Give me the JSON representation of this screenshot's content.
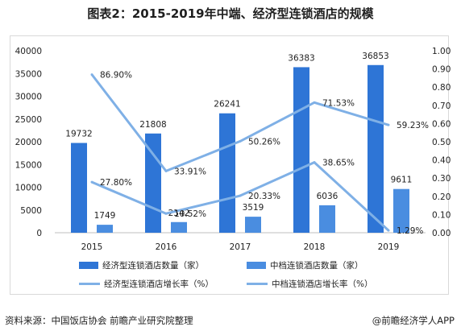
{
  "title": "图表2：2015-2019年中端、经济型连锁酒店的规模",
  "footer": {
    "source": "资料来源：中国饭店协会 前瞻产业研究院整理",
    "brand": "@前瞻经济学人APP"
  },
  "chart_data": {
    "type": "bar",
    "categories": [
      "2015",
      "2016",
      "2017",
      "2018",
      "2019"
    ],
    "y_left": {
      "min": 0,
      "max": 40000,
      "ticks": [
        0,
        5000,
        10000,
        15000,
        20000,
        25000,
        30000,
        35000,
        40000
      ]
    },
    "y_right": {
      "min": 0,
      "max": 1.0,
      "ticks": [
        "0.00",
        "0.10",
        "0.20",
        "0.30",
        "0.40",
        "0.50",
        "0.60",
        "0.70",
        "0.80",
        "0.90",
        "1.00"
      ]
    },
    "series": [
      {
        "name": "经济型连锁酒店数量（家）",
        "kind": "bar",
        "axis": "left",
        "color": "#2e75d6",
        "values": [
          19732,
          21808,
          26241,
          36383,
          36853
        ],
        "labels": [
          "19732",
          "21808",
          "26241",
          "36383",
          "36853"
        ]
      },
      {
        "name": "中档连锁酒店数量（家）",
        "kind": "bar",
        "axis": "left",
        "color": "#4a8de0",
        "values": [
          1749,
          2342,
          3519,
          6036,
          9611
        ],
        "labels": [
          "1749",
          "2342",
          "3519",
          "6036",
          "9611"
        ]
      },
      {
        "name": "经济型连锁酒店增长率（%）",
        "kind": "line",
        "axis": "right",
        "color": "#7fb0e6",
        "values": [
          0.869,
          0.3391,
          0.5026,
          0.7153,
          0.5923
        ],
        "labels": [
          "86.90%",
          "33.91%",
          "50.26%",
          "71.53%",
          "59.23%"
        ]
      },
      {
        "name": "中档连锁酒店增长率（%）",
        "kind": "line",
        "axis": "right",
        "color": "#7fb0e6",
        "values": [
          0.278,
          0.1052,
          0.2033,
          0.3865,
          0.0129
        ],
        "labels": [
          "27.80%",
          "10.52%",
          "20.33%",
          "38.65%",
          "1.29%"
        ]
      }
    ],
    "legend_position": "bottom",
    "grid": false
  },
  "colors": {
    "bar_dark": "#2e75d6",
    "bar_light": "#4a8de0",
    "line": "#7fb0e6"
  }
}
